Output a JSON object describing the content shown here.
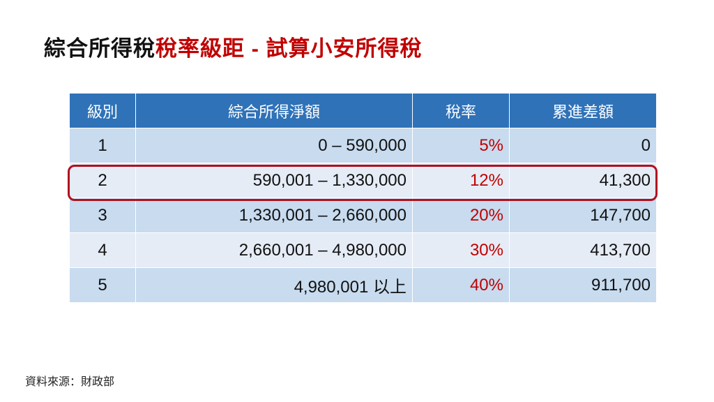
{
  "header": {
    "title_black": "綜合所得稅",
    "title_red": "稅率級距 - 試算小安所得稅"
  },
  "table": {
    "columns": [
      "級別",
      "綜合所得淨額",
      "稅率",
      "累進差額"
    ],
    "rows": [
      [
        "1",
        "0 – 590,000",
        "5%",
        "0"
      ],
      [
        "2",
        "590,001 – 1,330,000",
        "12%",
        "41,300"
      ],
      [
        "3",
        "1,330,001 – 2,660,000",
        "20%",
        "147,700"
      ],
      [
        "4",
        "2,660,001 – 4,980,000",
        "30%",
        "413,700"
      ],
      [
        "5",
        "4,980,001 以上",
        "40%",
        "911,700"
      ]
    ]
  },
  "footer": {
    "source": "資料來源：財政部"
  }
}
